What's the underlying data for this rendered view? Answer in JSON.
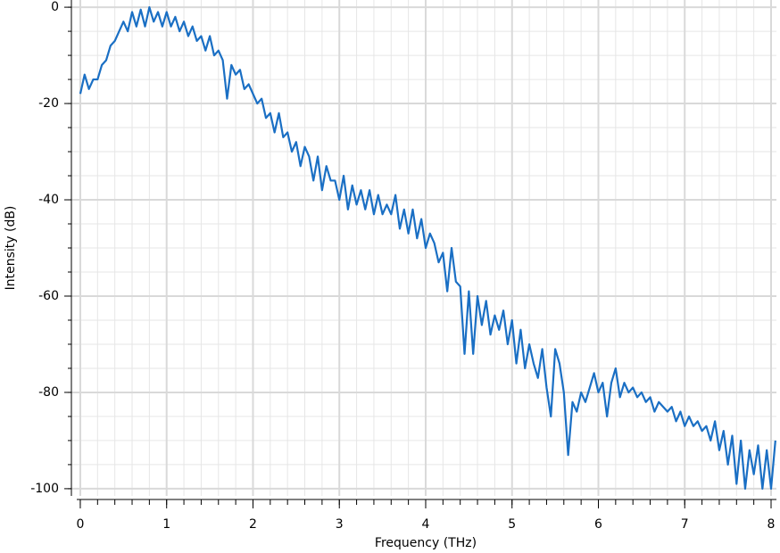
{
  "chart_data": {
    "type": "line",
    "x_label": "Frequency (THz)",
    "y_label": "Intensity (dB)",
    "xlim": [
      -0.103,
      8.062
    ],
    "ylim": [
      -101.5,
      1.5
    ],
    "xticks": [
      0,
      1,
      2,
      3,
      4,
      5,
      6,
      7,
      8
    ],
    "yticks": [
      -100,
      -80,
      -60,
      -40,
      -20,
      0
    ],
    "xminorticks": [
      0,
      0.2,
      0.4,
      0.6,
      0.8,
      1,
      1.2,
      1.4,
      1.6,
      1.8,
      2,
      2.2,
      2.4,
      2.6,
      2.8,
      3,
      3.2,
      3.4,
      3.6,
      3.8,
      4,
      4.2,
      4.4,
      4.6,
      4.8,
      5,
      5.2,
      5.4,
      5.6,
      5.8,
      6,
      6.2,
      6.4,
      6.6,
      6.8,
      7,
      7.2,
      7.4,
      7.6,
      7.8,
      8
    ],
    "yminorticks": [
      -100,
      -95,
      -90,
      -85,
      -80,
      -75,
      -70,
      -65,
      -60,
      -55,
      -50,
      -45,
      -40,
      -35,
      -30,
      -25,
      -20,
      -15,
      -10,
      -5,
      0
    ],
    "grid": true,
    "series": [
      {
        "color": "#1a6fc4",
        "x": [
          0,
          0.05,
          0.1,
          0.15,
          0.2,
          0.25,
          0.3,
          0.35,
          0.4,
          0.45,
          0.5,
          0.55,
          0.6,
          0.65,
          0.7,
          0.75,
          0.8,
          0.85,
          0.9,
          0.95,
          1,
          1.05,
          1.1,
          1.15,
          1.2,
          1.25,
          1.3,
          1.35,
          1.4,
          1.45,
          1.5,
          1.55,
          1.6,
          1.65,
          1.7,
          1.75,
          1.8,
          1.85,
          1.9,
          1.95,
          2,
          2.05,
          2.1,
          2.15,
          2.2,
          2.25,
          2.3,
          2.35,
          2.4,
          2.45,
          2.5,
          2.55,
          2.6,
          2.65,
          2.7,
          2.75,
          2.8,
          2.85,
          2.9,
          2.95,
          3,
          3.05,
          3.1,
          3.15,
          3.2,
          3.25,
          3.3,
          3.35,
          3.4,
          3.45,
          3.5,
          3.55,
          3.6,
          3.65,
          3.7,
          3.75,
          3.8,
          3.85,
          3.9,
          3.95,
          4,
          4.05,
          4.1,
          4.15,
          4.2,
          4.25,
          4.3,
          4.35,
          4.4,
          4.45,
          4.5,
          4.55,
          4.6,
          4.65,
          4.7,
          4.75,
          4.8,
          4.85,
          4.9,
          4.95,
          5,
          5.05,
          5.1,
          5.15,
          5.2,
          5.25,
          5.3,
          5.35,
          5.4,
          5.45,
          5.5,
          5.55,
          5.6,
          5.65,
          5.7,
          5.75,
          5.8,
          5.85,
          5.9,
          5.95,
          6,
          6.05,
          6.1,
          6.15,
          6.2,
          6.25,
          6.3,
          6.35,
          6.4,
          6.45,
          6.5,
          6.55,
          6.6,
          6.65,
          6.7,
          6.75,
          6.8,
          6.85,
          6.9,
          6.95,
          7,
          7.05,
          7.1,
          7.15,
          7.2,
          7.25,
          7.3,
          7.35,
          7.4,
          7.45,
          7.5,
          7.55,
          7.6,
          7.65,
          7.7,
          7.75,
          7.8,
          7.85,
          7.9,
          7.95,
          8,
          8.05
        ],
        "values": [
          -18,
          -14,
          -17,
          -15,
          -15,
          -12,
          -11,
          -8,
          -7,
          -5,
          -3,
          -5,
          -1,
          -4,
          -0.5,
          -4,
          0,
          -3,
          -1,
          -4,
          -1,
          -4,
          -2,
          -5,
          -3,
          -6,
          -4,
          -7,
          -6,
          -9,
          -6,
          -10,
          -9,
          -11,
          -19,
          -12,
          -14,
          -13,
          -17,
          -16,
          -18,
          -20,
          -19,
          -23,
          -22,
          -26,
          -22,
          -27,
          -26,
          -30,
          -28,
          -33,
          -29,
          -31,
          -36,
          -31,
          -38,
          -33,
          -36,
          -36,
          -40,
          -35,
          -42,
          -37,
          -41,
          -38,
          -42,
          -38,
          -43,
          -39,
          -43,
          -41,
          -43,
          -39,
          -46,
          -42,
          -47,
          -42,
          -48,
          -44,
          -50,
          -47,
          -49,
          -53,
          -51,
          -59,
          -50,
          -57,
          -58,
          -72,
          -59,
          -72,
          -60,
          -66,
          -61,
          -68,
          -64,
          -67,
          -63,
          -70,
          -65,
          -74,
          -67,
          -75,
          -70,
          -74,
          -77,
          -71,
          -79,
          -85,
          -71,
          -74,
          -80,
          -93,
          -82,
          -84,
          -80,
          -82,
          -79,
          -76,
          -80,
          -78,
          -85,
          -78,
          -75,
          -81,
          -78,
          -80,
          -79,
          -81,
          -80,
          -82,
          -81,
          -84,
          -82,
          -83,
          -84,
          -83,
          -86,
          -84,
          -87,
          -85,
          -87,
          -86,
          -88,
          -87,
          -90,
          -86,
          -92,
          -88,
          -95,
          -89,
          -99,
          -90,
          -100,
          -92,
          -97,
          -91,
          -100,
          -92,
          -100,
          -90
        ]
      }
    ]
  }
}
